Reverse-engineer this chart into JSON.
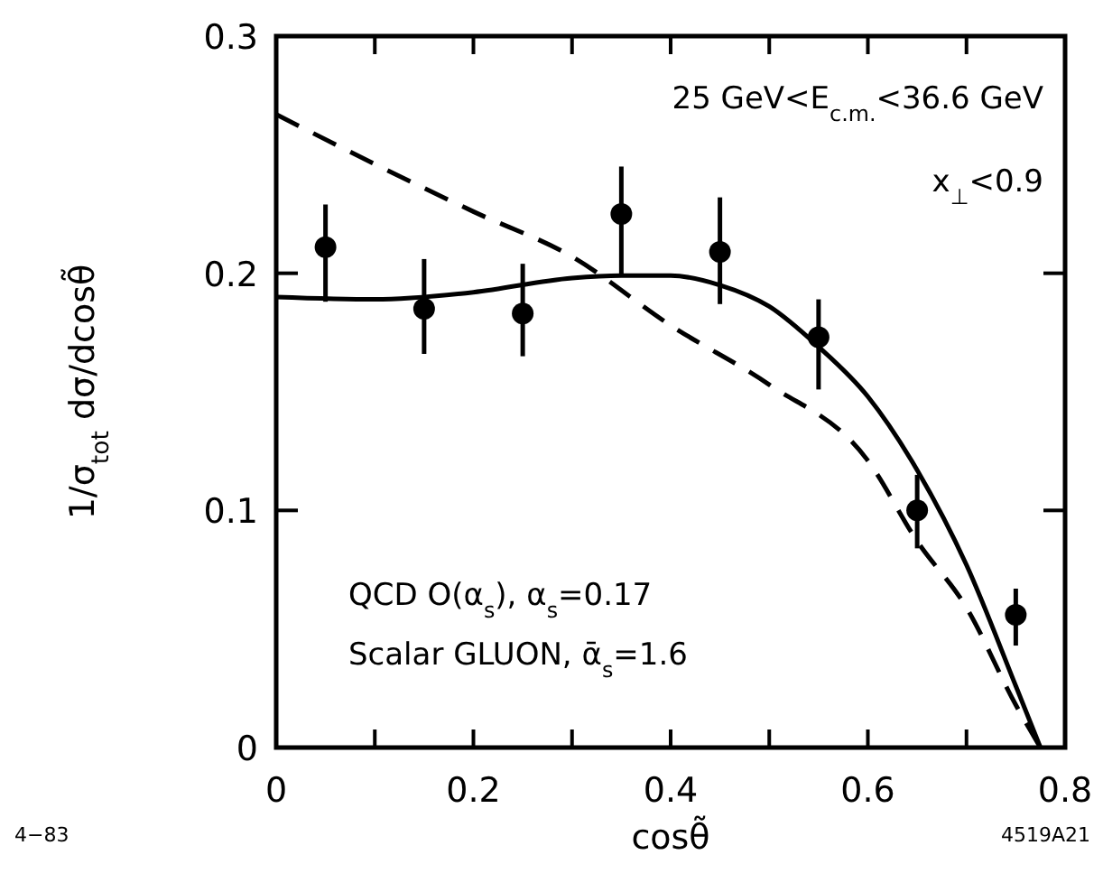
{
  "chart_data": {
    "type": "scatter",
    "xlabel": "cosθ̃",
    "ylabel": "1/σ$_{tot}$  dσ/dcosθ̃",
    "xlim": [
      0,
      0.8
    ],
    "ylim": [
      0,
      0.3
    ],
    "xticks": [
      0,
      {
        "value": 0.1,
        "label": null
      },
      0.2,
      {
        "value": 0.3,
        "label": null
      },
      0.4,
      {
        "value": 0.5,
        "label": null
      },
      0.6,
      {
        "value": 0.7,
        "label": null
      },
      0.8
    ],
    "yticks": [
      0,
      0.1,
      0.2,
      0.3
    ],
    "grid": false,
    "series": [
      {
        "color": "#000000",
        "marker": "circle",
        "x": [
          0.05,
          0.15,
          0.25,
          0.35,
          0.45,
          0.55,
          0.65,
          0.75
        ],
        "values": [
          0.211,
          0.185,
          0.183,
          0.225,
          0.209,
          0.173,
          0.1,
          0.056
        ],
        "errors": [
          [
            0.188,
            0.229
          ],
          [
            0.166,
            0.206
          ],
          [
            0.165,
            0.204
          ],
          [
            0.199,
            0.245
          ],
          [
            0.187,
            0.232
          ],
          [
            0.151,
            0.189
          ],
          [
            0.084,
            0.115
          ],
          [
            0.043,
            0.067
          ]
        ]
      },
      {
        "type": "line",
        "color": "#000000",
        "line_style": "solid",
        "marker": "none",
        "x": [
          0,
          0.1,
          0.2,
          0.3,
          0.35,
          0.4,
          0.45,
          0.5,
          0.55,
          0.6,
          0.65,
          0.7,
          0.75,
          0.775
        ],
        "values": [
          0.19,
          0.189,
          0.192,
          0.198,
          0.199,
          0.199,
          0.195,
          0.186,
          0.169,
          0.148,
          0.117,
          0.077,
          0.026,
          0
        ]
      },
      {
        "type": "line",
        "color": "#000000",
        "line_style": "dashed",
        "marker": "none",
        "x": [
          0,
          0.1,
          0.2,
          0.3,
          0.4,
          0.5,
          0.6,
          0.65,
          0.7,
          0.75,
          0.775
        ],
        "values": [
          0.267,
          0.246,
          0.226,
          0.207,
          0.178,
          0.153,
          0.121,
          0.087,
          0.059,
          0.018,
          0
        ]
      }
    ],
    "annotations": [
      "25 GeV<E$_{c.m.}$<36.6 GeV",
      "x$_{⊥}$<0.9",
      "QCD O(α$_{s}$), α$_{s}$=0.17",
      "Scalar GLUON, ᾱ$_{s}$=1.6",
      "4−83",
      "4519A21"
    ]
  }
}
